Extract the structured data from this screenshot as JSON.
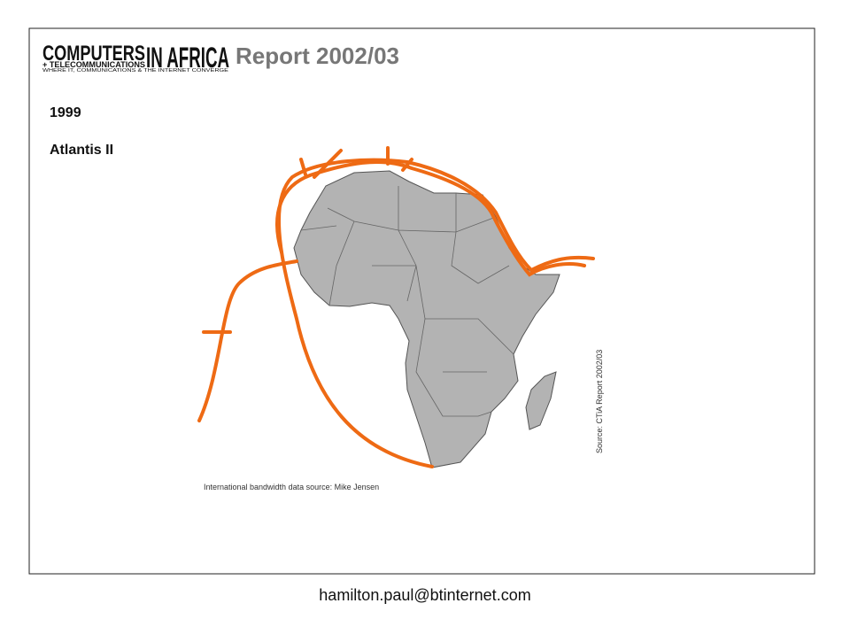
{
  "header": {
    "logo_main_left": "COMPUTERS",
    "logo_main_right": "IN AFRICA",
    "logo_sub": "+ TELECOMMUNICATIONS",
    "logo_tagline": "WHERE IT, COMMUNICATIONS & THE INTERNET CONVERGE",
    "title": "Report 2002/03"
  },
  "year": "1999",
  "cable_name": "Atlantis II",
  "bandwidth_source": "International bandwidth data source: Mike Jensen",
  "map_source": "Source: CTiA Report 2002/03",
  "footer": {
    "email": "hamilton.paul@btinternet.com"
  }
}
